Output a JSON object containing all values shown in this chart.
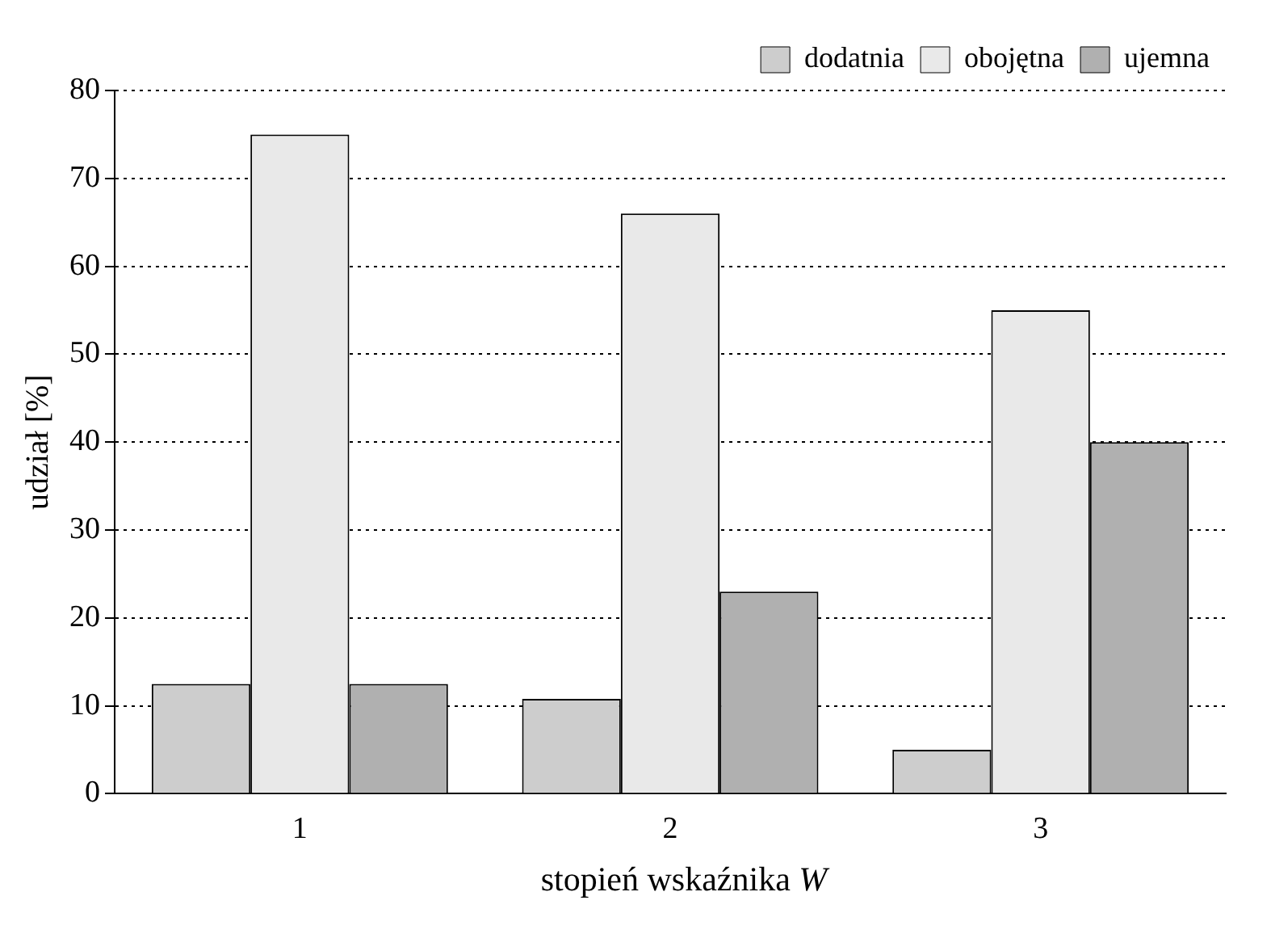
{
  "chart_data": {
    "type": "bar",
    "xlabel": "stopień wskaźnika W",
    "ylabel": "udział [%]",
    "categories": [
      "1",
      "2",
      "3"
    ],
    "series": [
      {
        "name": "dodatnia",
        "color": "#cdcdcd",
        "values": [
          12.5,
          10.8,
          5
        ]
      },
      {
        "name": "obojętna",
        "color": "#e9e9e9",
        "values": [
          75,
          66,
          55
        ]
      },
      {
        "name": "ujemna",
        "color": "#b0b0b0",
        "values": [
          12.5,
          23,
          40
        ]
      }
    ],
    "ylim": [
      0,
      80
    ],
    "yticks": [
      0,
      10,
      20,
      30,
      40,
      50,
      60,
      70,
      80
    ],
    "grid": "y",
    "legend": "top right"
  }
}
